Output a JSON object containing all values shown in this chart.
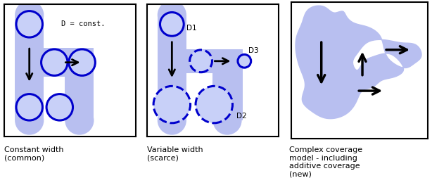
{
  "fig_width": 6.14,
  "fig_height": 2.7,
  "dpi": 100,
  "background": "#ffffff",
  "fill_color": "#b8bff0",
  "circle_edge_color": "#0000cc",
  "circle_fill_color": "#c8d0f8",
  "circle_lw": 2.2,
  "arrow_color": "#000000",
  "panel_titles": [
    "Constant width\n(common)",
    "Variable width\n(scarce)",
    "Complex coverage\nmodel - including\nadditive coverage\n(new)"
  ],
  "label_d_const": "D = const.",
  "label_d1": "D1",
  "label_d2": "D2",
  "label_d3": "D3"
}
